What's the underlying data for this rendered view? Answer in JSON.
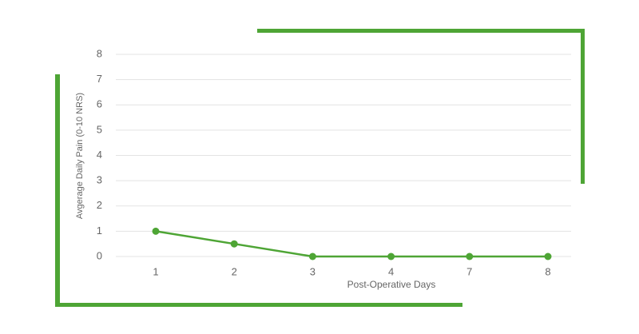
{
  "chart_data": {
    "type": "line",
    "y_label": "Avgerage Daily Pain (0-10 NRS)",
    "x_label": "Post-Operative Days",
    "categories": [
      "1",
      "2",
      "3",
      "4",
      "7",
      "8"
    ],
    "values": [
      1,
      0.5,
      0,
      0,
      0,
      0
    ],
    "color": "#4ea535",
    "ylim": [
      0,
      8
    ],
    "yticks": [
      0,
      1,
      2,
      3,
      4,
      5,
      6,
      7,
      8
    ],
    "grid": true
  }
}
